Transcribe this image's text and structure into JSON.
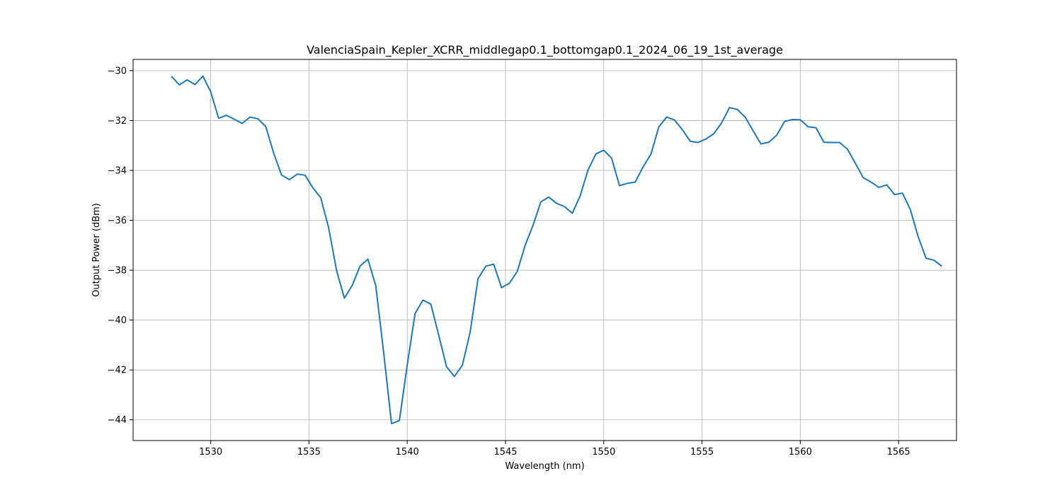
{
  "chart_data": {
    "type": "line",
    "title": "ValenciaSpain_Kepler_XCRR_middlegap0.1_bottomgap0.1_2024_06_19_1st_average",
    "xlabel": "Wavelength (nm)",
    "ylabel": "Output Power (dBm)",
    "xlim": [
      1526.05,
      1567.95
    ],
    "ylim": [
      -44.83,
      -29.55
    ],
    "xticks": [
      1530,
      1535,
      1540,
      1545,
      1550,
      1555,
      1560,
      1565
    ],
    "yticks": [
      -44,
      -42,
      -40,
      -38,
      -36,
      -34,
      -32,
      -30
    ],
    "grid": true,
    "line_color": "#1f77b4",
    "series": [
      {
        "x": [
          1528.0,
          1528.4,
          1528.8,
          1529.2,
          1529.6,
          1530.0,
          1530.4,
          1530.8,
          1531.2,
          1531.6,
          1532.0,
          1532.4,
          1532.8,
          1533.2,
          1533.6,
          1534.0,
          1534.4,
          1534.8,
          1535.2,
          1535.6,
          1536.0,
          1536.4,
          1536.8,
          1537.2,
          1537.6,
          1538.0,
          1538.4,
          1538.8,
          1539.2,
          1539.6,
          1540.0,
          1540.4,
          1540.8,
          1541.2,
          1541.6,
          1542.0,
          1542.4,
          1542.8,
          1543.2,
          1543.6,
          1544.0,
          1544.4,
          1544.8,
          1545.2,
          1545.6,
          1546.0,
          1546.4,
          1546.8,
          1547.2,
          1547.6,
          1548.0,
          1548.4,
          1548.8,
          1549.2,
          1549.6,
          1550.0,
          1550.4,
          1550.8,
          1551.2,
          1551.6,
          1552.0,
          1552.4,
          1552.8,
          1553.2,
          1553.6,
          1554.0,
          1554.4,
          1554.8,
          1555.2,
          1555.6,
          1556.0,
          1556.4,
          1556.8,
          1557.2,
          1557.6,
          1558.0,
          1558.4,
          1558.8,
          1559.2,
          1559.6,
          1560.0,
          1560.4,
          1560.8,
          1561.2,
          1561.6,
          1562.0,
          1562.4,
          1562.8,
          1563.2,
          1563.6,
          1564.0,
          1564.4,
          1564.8,
          1565.2,
          1565.6,
          1566.0,
          1566.4,
          1566.8,
          1567.2
        ],
        "y": [
          -30.23,
          -30.57,
          -30.37,
          -30.56,
          -30.22,
          -30.85,
          -31.91,
          -31.79,
          -31.95,
          -32.12,
          -31.86,
          -31.93,
          -32.24,
          -33.3,
          -34.18,
          -34.37,
          -34.15,
          -34.19,
          -34.7,
          -35.1,
          -36.3,
          -38.0,
          -39.12,
          -38.61,
          -37.83,
          -37.56,
          -38.63,
          -41.3,
          -44.15,
          -44.03,
          -41.8,
          -39.73,
          -39.2,
          -39.36,
          -40.6,
          -41.87,
          -42.26,
          -41.82,
          -40.49,
          -38.34,
          -37.84,
          -37.76,
          -38.7,
          -38.52,
          -38.05,
          -37.0,
          -36.2,
          -35.26,
          -35.07,
          -35.32,
          -35.45,
          -35.72,
          -35.02,
          -33.98,
          -33.34,
          -33.19,
          -33.51,
          -34.61,
          -34.52,
          -34.47,
          -33.86,
          -33.35,
          -32.26,
          -31.86,
          -31.98,
          -32.37,
          -32.83,
          -32.88,
          -32.74,
          -32.53,
          -32.09,
          -31.48,
          -31.56,
          -31.87,
          -32.41,
          -32.94,
          -32.87,
          -32.59,
          -32.04,
          -31.96,
          -31.97,
          -32.25,
          -32.29,
          -32.87,
          -32.88,
          -32.88,
          -33.15,
          -33.71,
          -34.29,
          -34.47,
          -34.68,
          -34.58,
          -34.97,
          -34.91,
          -35.57,
          -36.66,
          -37.52,
          -37.6,
          -37.84
        ]
      }
    ]
  }
}
